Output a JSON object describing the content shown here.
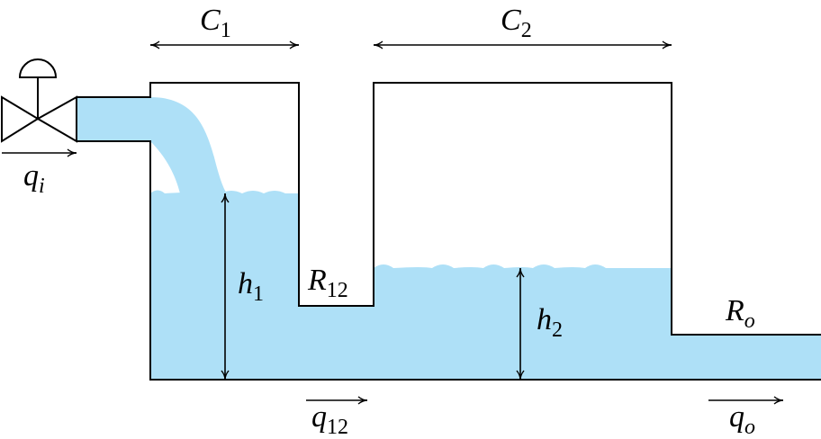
{
  "labels": {
    "c1": {
      "symbol": "C",
      "subscript": "1"
    },
    "c2": {
      "symbol": "C",
      "subscript": "2"
    },
    "qi": {
      "symbol": "q",
      "subscript": "i"
    },
    "h1": {
      "symbol": "h",
      "subscript": "1"
    },
    "r12": {
      "symbol": "R",
      "subscript": "12"
    },
    "h2": {
      "symbol": "h",
      "subscript": "2"
    },
    "ro": {
      "symbol": "R",
      "subscript": "o"
    },
    "q12": {
      "symbol": "q",
      "subscript": "12"
    },
    "qo": {
      "symbol": "q",
      "subscript": "o"
    }
  }
}
